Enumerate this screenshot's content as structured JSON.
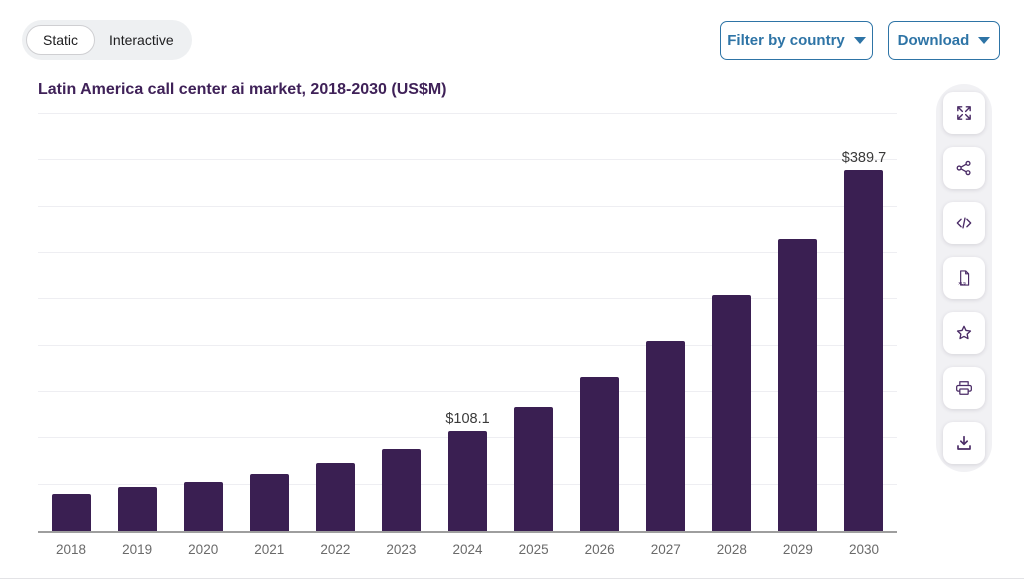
{
  "colors": {
    "bar": "#3a1f52",
    "title": "#3f2158",
    "accent_blue": "#2e74a6",
    "icon_purple": "#4a2b66",
    "axis_line": "#9e9e9e",
    "gridline": "#eeeef2",
    "tick_label": "#6a6a6a",
    "value_label": "#3a3a3a"
  },
  "toggle": {
    "options": [
      {
        "label": "Static",
        "active": true
      },
      {
        "label": "Interactive",
        "active": false
      }
    ]
  },
  "actions": {
    "filter": {
      "label": "Filter by country"
    },
    "download": {
      "label": "Download"
    }
  },
  "chart_data": {
    "type": "bar",
    "title": "Latin America call center ai market, 2018-2030 (US$M)",
    "categories": [
      "2018",
      "2019",
      "2020",
      "2021",
      "2022",
      "2023",
      "2024",
      "2025",
      "2026",
      "2027",
      "2028",
      "2029",
      "2030"
    ],
    "values": [
      40.4,
      47.6,
      52.8,
      61.4,
      73.2,
      88.3,
      108.1,
      133.9,
      165.8,
      205.3,
      254.2,
      314.8,
      389.7
    ],
    "value_labels": [
      "",
      "",
      "",
      "",
      "",
      "",
      "$108.1",
      "",
      "",
      "",
      "",
      "",
      "$389.7"
    ],
    "xlabel": "",
    "ylabel": "",
    "ylim": [
      0,
      450
    ],
    "grid_step": 50,
    "grid": "on",
    "y_tick_labels": "hidden",
    "legend": "none",
    "bar_color": "#3a1f52"
  },
  "side_toolbar": {
    "items": [
      {
        "name": "expand"
      },
      {
        "name": "share"
      },
      {
        "name": "embed-code"
      },
      {
        "name": "xls-export"
      },
      {
        "name": "favorite"
      },
      {
        "name": "print"
      },
      {
        "name": "download-image"
      }
    ]
  }
}
